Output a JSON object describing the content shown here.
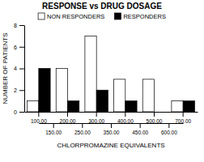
{
  "chart_data": {
    "type": "bar",
    "title": "RESPONSE vs DRUG DOSAGE",
    "x_label": "CHLORPROMAZINE EQUIVALENTS",
    "y_label": "NUMBER OF PATIENTS",
    "categories": [
      "100.00",
      "200.00",
      "300.00",
      "400.00",
      "500.00",
      "700.00"
    ],
    "x2ticks": [
      "150.00",
      "250.00",
      "350.00",
      "450.00",
      "600.00"
    ],
    "series": [
      {
        "name": "NON RESPONDERS",
        "color": "#ffffff",
        "values": [
          1,
          4,
          7,
          3,
          3,
          1
        ]
      },
      {
        "name": "RESPONDERS",
        "color": "#000000",
        "values": [
          4,
          1,
          2,
          1,
          0,
          1
        ]
      }
    ],
    "ylim": [
      0,
      8
    ],
    "yticks": [
      0,
      2,
      4,
      6,
      8
    ],
    "grid": false,
    "legend": "top"
  }
}
